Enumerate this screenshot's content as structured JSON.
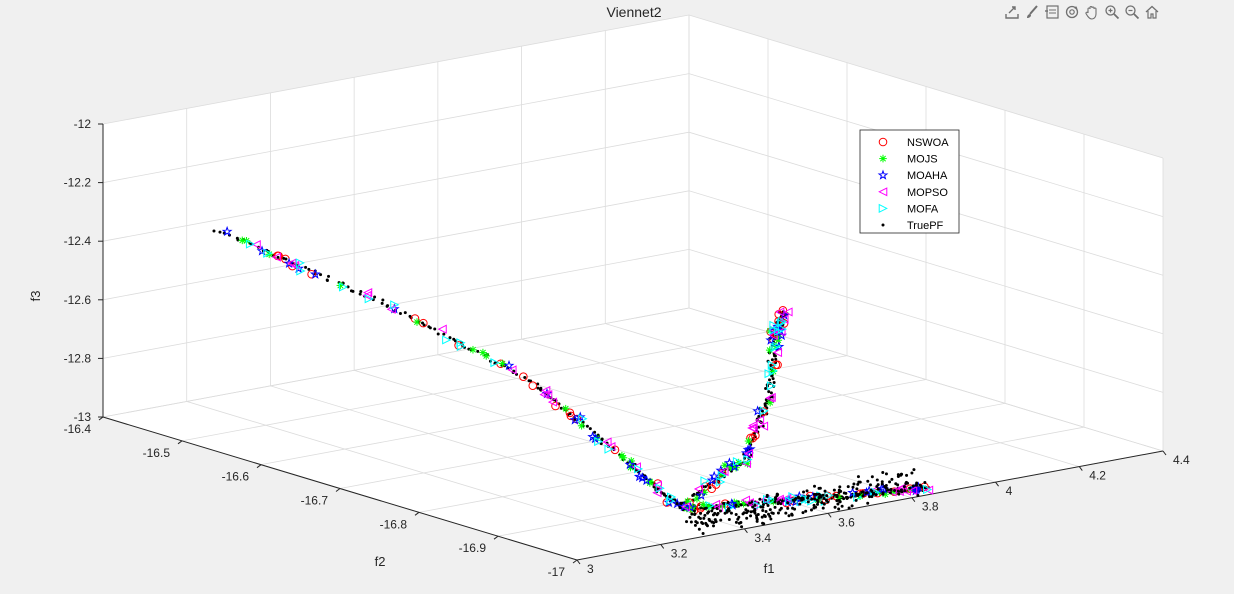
{
  "toolbar": {
    "items": [
      {
        "name": "export-icon"
      },
      {
        "name": "brush-icon"
      },
      {
        "name": "datatip-icon"
      },
      {
        "name": "rotate-icon"
      },
      {
        "name": "pan-icon"
      },
      {
        "name": "zoom-in-icon"
      },
      {
        "name": "zoom-out-icon"
      },
      {
        "name": "home-icon"
      }
    ]
  },
  "chart_data": {
    "type": "scatter",
    "title": "Viennet2",
    "xlabel": "f1",
    "ylabel": "f2",
    "zlabel": "f3",
    "xlim": [
      3,
      4.4
    ],
    "ylim": [
      -17,
      -16.4
    ],
    "zlim": [
      -13,
      -12
    ],
    "xticks": [
      "3",
      "3.2",
      "3.4",
      "3.6",
      "3.8",
      "4",
      "4.2",
      "4.4"
    ],
    "yticks": [
      "-17",
      "-16.9",
      "-16.8",
      "-16.7",
      "-16.6",
      "-16.5",
      "-16.4"
    ],
    "zticks": [
      "-13",
      "-12.8",
      "-12.6",
      "-12.4",
      "-12.2",
      "-12"
    ],
    "grid": true,
    "legend_position": "top-right",
    "series": [
      {
        "name": "NSWOA",
        "marker": "circle",
        "color": "#ff0000"
      },
      {
        "name": "MOJS",
        "marker": "asterisk",
        "color": "#00ff00"
      },
      {
        "name": "MOAHA",
        "marker": "pentagram",
        "color": "#0000ff"
      },
      {
        "name": "MOPSO",
        "marker": "triangle-left",
        "color": "#ff00ff"
      },
      {
        "name": "MOFA",
        "marker": "triangle-right",
        "color": "#00ffff"
      },
      {
        "name": "TruePF",
        "marker": "dot",
        "color": "#000000"
      }
    ],
    "front_branches": [
      {
        "name": "upper-left",
        "x": [
          3.05,
          3.12,
          3.2,
          3.26,
          3.3
        ],
        "y": [
          -16.52,
          -16.68,
          -16.83,
          -16.93,
          -16.97
        ],
        "z": [
          -12.28,
          -12.4,
          -12.57,
          -12.8,
          -12.92
        ]
      },
      {
        "name": "upper-right",
        "x": [
          3.3,
          3.55,
          3.78,
          3.98,
          4.06
        ],
        "y": [
          -16.97,
          -16.92,
          -16.83,
          -16.73,
          -16.7
        ],
        "z": [
          -12.92,
          -12.87,
          -12.8,
          -12.72,
          -12.68
        ]
      },
      {
        "name": "lower-right",
        "x": [
          3.3,
          3.5,
          3.7,
          3.86
        ],
        "y": [
          -16.97,
          -16.97,
          -16.98,
          -16.99
        ],
        "z": [
          -12.93,
          -12.96,
          -12.98,
          -12.99
        ]
      }
    ]
  }
}
